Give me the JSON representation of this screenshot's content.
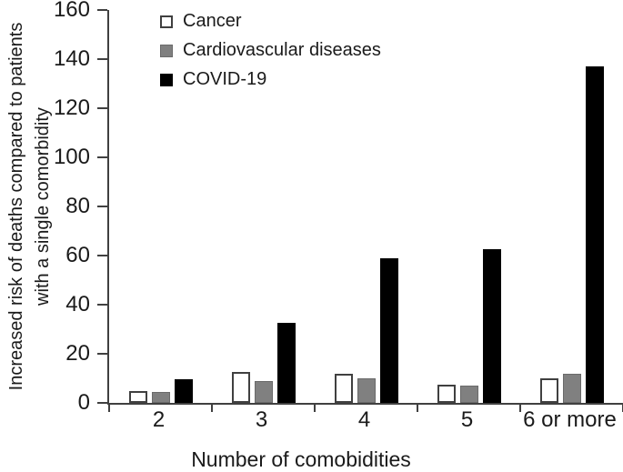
{
  "chart_data": {
    "type": "bar",
    "categories": [
      "2",
      "3",
      "4",
      "5",
      "6 or more"
    ],
    "series": [
      {
        "name": "Cancer",
        "values": [
          5,
          12.5,
          12,
          7.5,
          10
        ],
        "fill": "#ffffff",
        "border": "#404040"
      },
      {
        "name": "Cardiovascular diseases",
        "values": [
          4.5,
          9,
          10,
          7,
          12
        ],
        "fill": "#808080",
        "border": "#6a6a6a"
      },
      {
        "name": "COVID-19",
        "values": [
          9.5,
          32.5,
          59,
          62.5,
          137
        ],
        "fill": "#000000",
        "border": "#000000"
      }
    ],
    "title": "",
    "xlabel": "Number of comobidities",
    "ylabel": "Increased risk of deaths compared to patients with a single comorbidity",
    "ylabel_lines": [
      "Increased risk of deaths compared to patients",
      "with a single comorbidity"
    ],
    "ylim": [
      0,
      160
    ],
    "ytick_step": 20,
    "yticks": [
      "0",
      "20",
      "40",
      "60",
      "80",
      "100",
      "120",
      "140",
      "160"
    ],
    "grid": false,
    "legend_position": "top-left-inside",
    "axis_color": "#404040"
  }
}
